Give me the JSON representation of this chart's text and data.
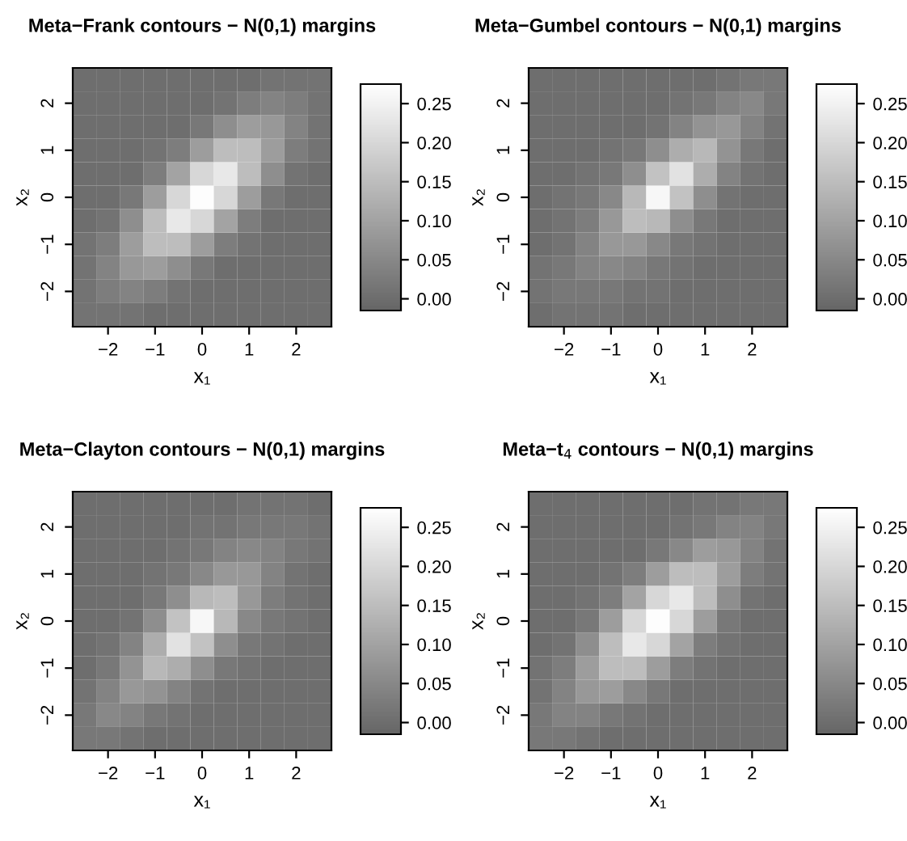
{
  "chart_data": [
    {
      "type": "heatmap",
      "title": "Meta−Frank contours − N(0,1) margins",
      "xlabel": "x₁",
      "ylabel": "x₂",
      "categories": [
        null,
        "−2",
        null,
        "−1",
        null,
        "0",
        null,
        "1",
        null,
        "2",
        null
      ],
      "y_categories": [
        null,
        "2",
        null,
        "1",
        null,
        "0",
        null,
        "−1",
        null,
        "−2",
        null
      ],
      "clim": [
        -0.015,
        0.275
      ],
      "cticks": [
        {
          "value": 0,
          "label": "0.00"
        },
        {
          "value": 0.05,
          "label": "0.05"
        },
        {
          "value": 0.1,
          "label": "0.10"
        },
        {
          "value": 0.15,
          "label": "0.15"
        },
        {
          "value": 0.2,
          "label": "0.20"
        },
        {
          "value": 0.25,
          "label": "0.25"
        }
      ],
      "cells": [
        [
          0,
          0,
          0,
          0,
          0,
          0,
          0,
          0,
          0.01,
          0.01,
          0.01
        ],
        [
          0,
          0,
          0,
          0,
          0,
          0,
          0.01,
          0.03,
          0.04,
          0.03,
          0.01
        ],
        [
          0,
          0,
          0,
          0,
          0,
          0.02,
          0.06,
          0.09,
          0.08,
          0.04,
          0.01
        ],
        [
          0,
          0,
          0,
          0.01,
          0.03,
          0.09,
          0.15,
          0.15,
          0.09,
          0.03,
          0.01
        ],
        [
          0,
          0,
          0,
          0.03,
          0.1,
          0.2,
          0.23,
          0.15,
          0.06,
          0.01,
          0
        ],
        [
          0,
          0,
          0.02,
          0.09,
          0.2,
          0.27,
          0.2,
          0.09,
          0.02,
          0,
          0
        ],
        [
          0,
          0.01,
          0.06,
          0.15,
          0.23,
          0.2,
          0.1,
          0.03,
          0,
          0,
          0
        ],
        [
          0.01,
          0.03,
          0.09,
          0.15,
          0.15,
          0.09,
          0.03,
          0.01,
          0,
          0,
          0
        ],
        [
          0.01,
          0.04,
          0.08,
          0.09,
          0.06,
          0.02,
          0,
          0,
          0,
          0,
          0
        ],
        [
          0.01,
          0.03,
          0.04,
          0.03,
          0.01,
          0,
          0,
          0,
          0,
          0,
          0
        ],
        [
          0.01,
          0.01,
          0.01,
          0,
          0,
          0,
          0,
          0,
          0,
          0,
          0
        ]
      ]
    },
    {
      "type": "heatmap",
      "title": "Meta−Gumbel contours − N(0,1) margins",
      "xlabel": "x₁",
      "ylabel": "x₂",
      "categories": [
        null,
        "−2",
        null,
        "−1",
        null,
        "0",
        null,
        "1",
        null,
        "2",
        null
      ],
      "y_categories": [
        null,
        "2",
        null,
        "1",
        null,
        "0",
        null,
        "−1",
        null,
        "−2",
        null
      ],
      "clim": [
        -0.015,
        0.275
      ],
      "cticks": [
        {
          "value": 0,
          "label": "0.00"
        },
        {
          "value": 0.05,
          "label": "0.05"
        },
        {
          "value": 0.1,
          "label": "0.10"
        },
        {
          "value": 0.15,
          "label": "0.15"
        },
        {
          "value": 0.2,
          "label": "0.20"
        },
        {
          "value": 0.25,
          "label": "0.25"
        }
      ],
      "cells": [
        [
          0,
          0,
          0,
          0,
          0,
          0,
          0,
          0,
          0.01,
          0.02,
          0.02
        ],
        [
          0,
          0,
          0,
          0,
          0,
          0,
          0.01,
          0.02,
          0.04,
          0.05,
          0.02
        ],
        [
          0,
          0,
          0,
          0,
          0,
          0.01,
          0.04,
          0.07,
          0.08,
          0.04,
          0.01
        ],
        [
          0,
          0,
          0,
          0.01,
          0.02,
          0.06,
          0.12,
          0.14,
          0.07,
          0.02,
          0
        ],
        [
          0,
          0,
          0.01,
          0.02,
          0.06,
          0.16,
          0.22,
          0.12,
          0.04,
          0.01,
          0
        ],
        [
          0,
          0.01,
          0.02,
          0.05,
          0.14,
          0.26,
          0.16,
          0.06,
          0.01,
          0,
          0
        ],
        [
          0,
          0.01,
          0.03,
          0.08,
          0.15,
          0.14,
          0.06,
          0.02,
          0,
          0,
          0
        ],
        [
          0,
          0.01,
          0.04,
          0.08,
          0.08,
          0.05,
          0.02,
          0.01,
          0,
          0,
          0
        ],
        [
          0.01,
          0.02,
          0.04,
          0.05,
          0.04,
          0.02,
          0.01,
          0,
          0,
          0,
          0
        ],
        [
          0.01,
          0.02,
          0.02,
          0.02,
          0.01,
          0.01,
          0,
          0,
          0,
          0,
          0
        ],
        [
          0,
          0.01,
          0.01,
          0.01,
          0,
          0,
          0,
          0,
          0,
          0,
          0
        ]
      ]
    },
    {
      "type": "heatmap",
      "title": "Meta−Clayton contours − N(0,1) margins",
      "xlabel": "x₁",
      "ylabel": "x₂",
      "categories": [
        null,
        "−2",
        null,
        "−1",
        null,
        "0",
        null,
        "1",
        null,
        "2",
        null
      ],
      "y_categories": [
        null,
        "2",
        null,
        "1",
        null,
        "0",
        null,
        "−1",
        null,
        "−2",
        null
      ],
      "clim": [
        -0.015,
        0.275
      ],
      "cticks": [
        {
          "value": 0,
          "label": "0.00"
        },
        {
          "value": 0.05,
          "label": "0.05"
        },
        {
          "value": 0.1,
          "label": "0.10"
        },
        {
          "value": 0.15,
          "label": "0.15"
        },
        {
          "value": 0.2,
          "label": "0.20"
        },
        {
          "value": 0.25,
          "label": "0.25"
        }
      ],
      "cells": [
        [
          0,
          0,
          0,
          0,
          0,
          0,
          0,
          0.01,
          0.01,
          0.01,
          0
        ],
        [
          0,
          0,
          0,
          0,
          0,
          0.01,
          0.01,
          0.02,
          0.02,
          0.02,
          0.01
        ],
        [
          0,
          0,
          0,
          0,
          0.01,
          0.02,
          0.04,
          0.05,
          0.04,
          0.02,
          0.01
        ],
        [
          0,
          0,
          0,
          0.01,
          0.02,
          0.05,
          0.08,
          0.08,
          0.04,
          0.01,
          0
        ],
        [
          0,
          0,
          0,
          0.02,
          0.06,
          0.14,
          0.15,
          0.08,
          0.03,
          0.01,
          0
        ],
        [
          0,
          0,
          0.01,
          0.06,
          0.16,
          0.26,
          0.14,
          0.05,
          0.02,
          0.01,
          0
        ],
        [
          0,
          0.01,
          0.04,
          0.12,
          0.22,
          0.16,
          0.06,
          0.02,
          0.01,
          0,
          0
        ],
        [
          0,
          0.02,
          0.07,
          0.14,
          0.12,
          0.06,
          0.02,
          0.01,
          0,
          0,
          0
        ],
        [
          0.01,
          0.04,
          0.08,
          0.07,
          0.04,
          0.01,
          0,
          0,
          0,
          0,
          0
        ],
        [
          0.02,
          0.05,
          0.04,
          0.02,
          0.01,
          0,
          0,
          0,
          0,
          0,
          0
        ],
        [
          0.02,
          0.02,
          0.01,
          0,
          0,
          0,
          0,
          0,
          0,
          0,
          0
        ]
      ]
    },
    {
      "type": "heatmap",
      "title": "Meta−t$_{4}$ contours − N(0,1) margins",
      "xlabel": "x₁",
      "ylabel": "x₂",
      "categories": [
        null,
        "−2",
        null,
        "−1",
        null,
        "0",
        null,
        "1",
        null,
        "2",
        null
      ],
      "y_categories": [
        null,
        "2",
        null,
        "1",
        null,
        "0",
        null,
        "−1",
        null,
        "−2",
        null
      ],
      "clim": [
        -0.015,
        0.275
      ],
      "cticks": [
        {
          "value": 0,
          "label": "0.00"
        },
        {
          "value": 0.05,
          "label": "0.05"
        },
        {
          "value": 0.1,
          "label": "0.10"
        },
        {
          "value": 0.15,
          "label": "0.15"
        },
        {
          "value": 0.2,
          "label": "0.20"
        },
        {
          "value": 0.25,
          "label": "0.25"
        }
      ],
      "cells": [
        [
          0,
          0,
          0,
          0,
          0,
          0,
          0,
          0.01,
          0.01,
          0.02,
          0.02
        ],
        [
          0,
          0,
          0,
          0,
          0,
          0,
          0.01,
          0.02,
          0.04,
          0.04,
          0.02
        ],
        [
          0,
          0,
          0,
          0,
          0,
          0.02,
          0.05,
          0.09,
          0.08,
          0.04,
          0.01
        ],
        [
          0,
          0,
          0,
          0.01,
          0.03,
          0.09,
          0.15,
          0.15,
          0.09,
          0.03,
          0.01
        ],
        [
          0,
          0,
          0.01,
          0.03,
          0.1,
          0.2,
          0.23,
          0.15,
          0.06,
          0.01,
          0
        ],
        [
          0,
          0,
          0.02,
          0.09,
          0.2,
          0.27,
          0.2,
          0.09,
          0.02,
          0,
          0
        ],
        [
          0,
          0.01,
          0.06,
          0.15,
          0.23,
          0.2,
          0.1,
          0.03,
          0.01,
          0,
          0
        ],
        [
          0.01,
          0.03,
          0.09,
          0.15,
          0.15,
          0.09,
          0.03,
          0.01,
          0,
          0,
          0
        ],
        [
          0.01,
          0.04,
          0.08,
          0.09,
          0.05,
          0.02,
          0,
          0,
          0,
          0,
          0
        ],
        [
          0.02,
          0.04,
          0.04,
          0.02,
          0.01,
          0,
          0,
          0,
          0,
          0,
          0
        ],
        [
          0.02,
          0.02,
          0.01,
          0,
          0,
          0,
          0,
          0,
          0,
          0,
          0
        ]
      ]
    }
  ]
}
